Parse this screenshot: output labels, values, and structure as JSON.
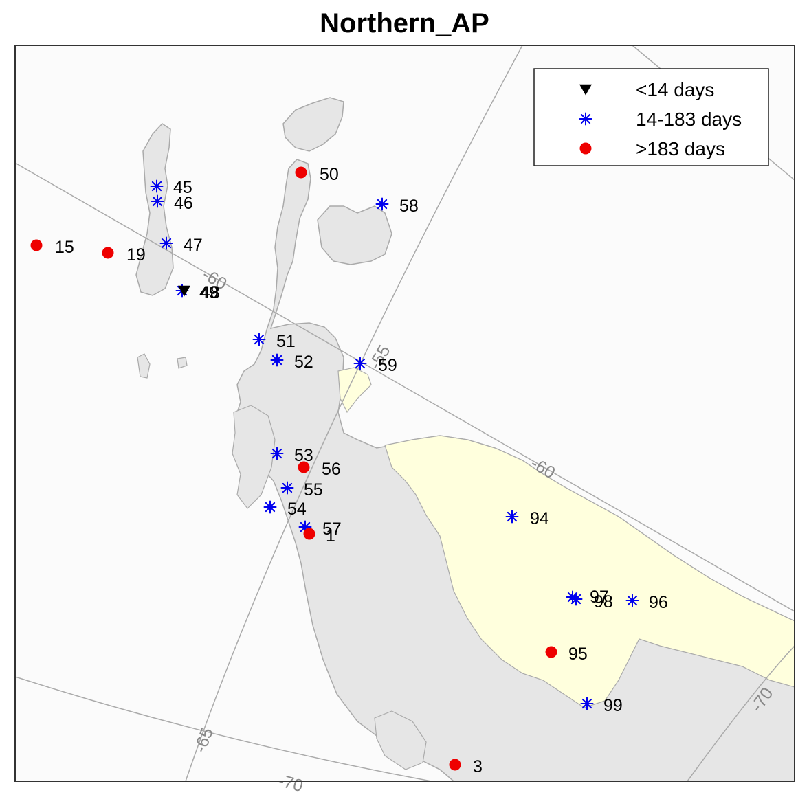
{
  "title": "Northern_AP",
  "legend": [
    {
      "symbol": "triangle-down",
      "color": "#000000",
      "label": "<14 days"
    },
    {
      "symbol": "asterisk",
      "color": "#0000ee",
      "label": "14-183 days"
    },
    {
      "symbol": "dot",
      "color": "#ee0000",
      "label": ">183 days"
    }
  ],
  "grid_labels": [
    "-60",
    "-55",
    "-60",
    "-65",
    "-70",
    "-70"
  ],
  "colors": {
    "ocean": "#fbfbfb",
    "land": "#e6e6e6",
    "ice_shelf": "#ffffdd",
    "coast": "#aaaaaa",
    "grid": "#aaaaaa"
  },
  "stations": [
    {
      "id": "15",
      "cat": "dot"
    },
    {
      "id": "19",
      "cat": "dot"
    },
    {
      "id": "45",
      "cat": "asterisk"
    },
    {
      "id": "46",
      "cat": "asterisk"
    },
    {
      "id": "47",
      "cat": "asterisk"
    },
    {
      "id": "49",
      "cat": "asterisk"
    },
    {
      "id": "48",
      "cat": "triangle-down"
    },
    {
      "id": "50",
      "cat": "dot"
    },
    {
      "id": "58",
      "cat": "asterisk"
    },
    {
      "id": "51",
      "cat": "asterisk"
    },
    {
      "id": "52",
      "cat": "asterisk"
    },
    {
      "id": "59",
      "cat": "asterisk"
    },
    {
      "id": "53",
      "cat": "asterisk"
    },
    {
      "id": "56",
      "cat": "dot"
    },
    {
      "id": "55",
      "cat": "asterisk"
    },
    {
      "id": "54",
      "cat": "asterisk"
    },
    {
      "id": "57",
      "cat": "asterisk"
    },
    {
      "id": "1",
      "cat": "dot"
    },
    {
      "id": "94",
      "cat": "asterisk"
    },
    {
      "id": "97",
      "cat": "asterisk"
    },
    {
      "id": "98",
      "cat": "asterisk"
    },
    {
      "id": "96",
      "cat": "asterisk"
    },
    {
      "id": "95",
      "cat": "dot"
    },
    {
      "id": "99",
      "cat": "asterisk"
    },
    {
      "id": "3",
      "cat": "dot"
    }
  ]
}
